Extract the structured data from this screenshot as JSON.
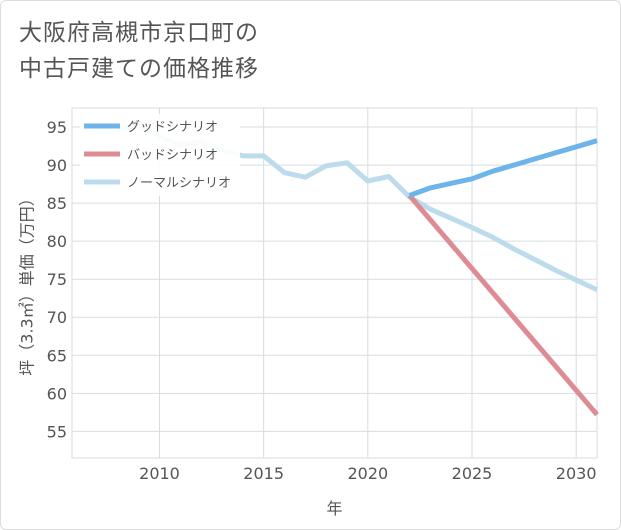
{
  "title": {
    "line1": "大阪府高槻市京口町の",
    "line2": "中古戸建ての価格推移"
  },
  "chart_data": {
    "type": "line",
    "xlabel": "年",
    "ylabel": "坪（3.3㎡）単価（万円）",
    "xlim": [
      2005.8,
      2031
    ],
    "ylim": [
      51.5,
      97.5
    ],
    "xticks": [
      2010,
      2015,
      2020,
      2025,
      2030
    ],
    "yticks": [
      55,
      60,
      65,
      70,
      75,
      80,
      85,
      90,
      95
    ],
    "grid": true,
    "legend_position": "top-left",
    "series": [
      {
        "name": "グッドシナリオ",
        "color": "#6cb4ea",
        "x": [
          2022,
          2023,
          2024,
          2025,
          2026,
          2027,
          2028,
          2029,
          2030,
          2031
        ],
        "y": [
          86.0,
          87.0,
          87.6,
          88.2,
          89.2,
          90.0,
          90.8,
          91.6,
          92.4,
          93.2
        ]
      },
      {
        "name": "バッドシナリオ",
        "color": "#de8c94",
        "x": [
          2022,
          2031
        ],
        "y": [
          86.0,
          57.2
        ]
      },
      {
        "name": "ノーマルシナリオ",
        "color": "#bcdcec",
        "x": [
          2008,
          2009,
          2010,
          2011,
          2012,
          2013,
          2014,
          2015,
          2016,
          2017,
          2018,
          2019,
          2020,
          2021,
          2022,
          2023,
          2024,
          2025,
          2026,
          2027,
          2028,
          2029,
          2030,
          2031
        ],
        "y": [
          94.7,
          95.2,
          93.8,
          92.6,
          93.0,
          92.0,
          91.2,
          91.2,
          89.0,
          88.4,
          89.9,
          90.3,
          87.9,
          88.5,
          85.8,
          84.2,
          83.0,
          81.8,
          80.5,
          79.0,
          77.6,
          76.2,
          74.9,
          73.6
        ]
      }
    ]
  }
}
